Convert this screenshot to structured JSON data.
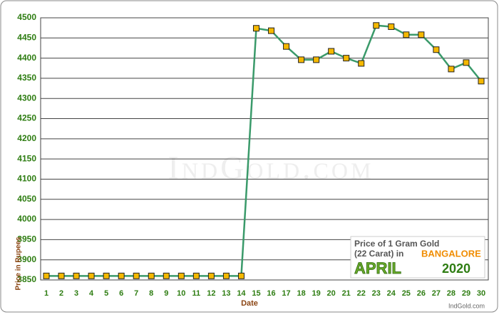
{
  "chart_data": {
    "type": "line",
    "x_label": "Date",
    "y_label": "Price in Rupees",
    "watermark": "IndGold.com",
    "legend_line1": "Price of 1 Gram Gold",
    "legend_line2": "(22 Carat) in",
    "city": "BANGALORE",
    "month": "APRIL",
    "year": "2020",
    "footer": "IndGold.com",
    "categories": [
      "1",
      "2",
      "3",
      "4",
      "5",
      "6",
      "7",
      "8",
      "9",
      "10",
      "11",
      "12",
      "13",
      "14",
      "15",
      "16",
      "17",
      "18",
      "19",
      "20",
      "21",
      "22",
      "23",
      "24",
      "25",
      "26",
      "27",
      "28",
      "29",
      "30"
    ],
    "series": [
      {
        "color": "#3a9a6a",
        "marker_color": "#f5b800",
        "values": [
          3860,
          3860,
          3860,
          3860,
          3860,
          3860,
          3860,
          3860,
          3860,
          3860,
          3860,
          3860,
          3860,
          3860,
          4474,
          4468,
          4429,
          4396,
          4396,
          4417,
          4400,
          4387,
          4481,
          4478,
          4458,
          4458,
          4421,
          4373,
          4389,
          4343
        ]
      }
    ],
    "ylim": [
      3850,
      4500
    ],
    "yticks": [
      3850,
      3900,
      3950,
      4000,
      4050,
      4100,
      4150,
      4200,
      4250,
      4300,
      4350,
      4400,
      4450,
      4500
    ],
    "grid": true
  }
}
